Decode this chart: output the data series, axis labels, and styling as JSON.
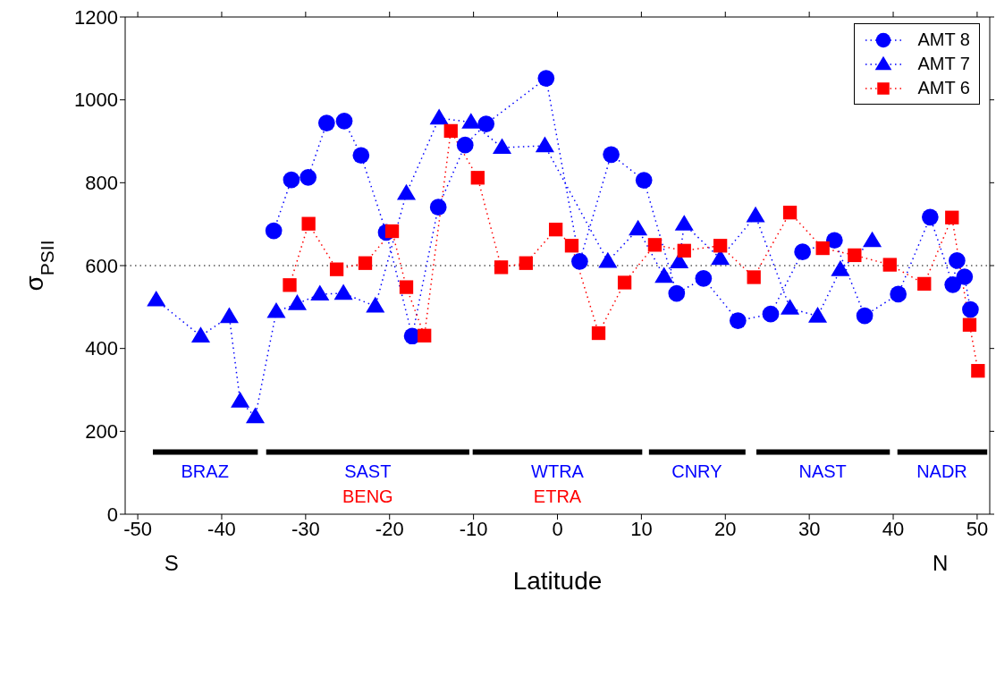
{
  "chart_data": {
    "type": "line",
    "xlabel": "Latitude",
    "ylabel": "σ$_{PSII}$",
    "xlim": [
      -51.5,
      51.5
    ],
    "xticks": [
      -50,
      -40,
      -30,
      -20,
      -10,
      0,
      10,
      20,
      30,
      40,
      50
    ],
    "ylim": [
      0,
      1200
    ],
    "yticks": [
      0,
      200,
      400,
      600,
      800,
      1000,
      1200
    ],
    "legend": "top right",
    "line_style": "dotted",
    "series": [
      {
        "name": "AMT 8",
        "color": "#0000ff",
        "marker": "circle",
        "x": [
          -33.8,
          -31.7,
          -29.7,
          -27.5,
          -25.4,
          -23.4,
          -20.4,
          -17.3,
          -14.2,
          -11.0,
          -8.5,
          -1.35,
          2.65,
          6.4,
          10.3,
          14.2,
          17.4,
          21.5,
          25.4,
          29.2,
          33.0,
          36.6,
          40.6,
          44.4,
          47.1,
          47.6,
          48.5,
          49.2
        ],
        "values": [
          684,
          807,
          813,
          944,
          949,
          866,
          680,
          430,
          741,
          891,
          942,
          1052,
          610,
          868,
          806,
          533,
          569,
          467,
          483,
          633,
          661,
          479,
          531,
          717,
          554,
          612,
          573,
          494
        ]
      },
      {
        "name": "AMT 7",
        "color": "#0000ff",
        "marker": "triangle",
        "x": [
          -47.8,
          -42.5,
          -39.1,
          -37.8,
          -36.0,
          -33.5,
          -31.0,
          -28.3,
          -25.5,
          -21.7,
          -18.0,
          -14.1,
          -10.3,
          -6.6,
          -1.5,
          6.0,
          9.6,
          12.7,
          14.5,
          15.1,
          19.4,
          23.6,
          27.7,
          31.0,
          33.7,
          37.5
        ],
        "values": [
          517,
          430,
          477,
          273,
          235,
          489,
          508,
          531,
          533,
          502,
          774,
          956,
          946,
          885,
          889,
          610,
          688,
          574,
          609,
          700,
          617,
          720,
          497,
          478,
          590,
          660
        ]
      },
      {
        "name": "AMT 6",
        "color": "#ff0000",
        "marker": "square",
        "x": [
          -31.9,
          -29.65,
          -26.3,
          -22.9,
          -19.7,
          -18.0,
          -15.85,
          -12.7,
          -9.5,
          -6.7,
          -3.75,
          -0.2,
          1.7,
          4.9,
          8.0,
          11.6,
          15.1,
          19.4,
          23.4,
          27.7,
          31.6,
          35.4,
          39.6,
          43.7,
          47.0,
          49.1,
          50.1
        ],
        "values": [
          553,
          701,
          591,
          606,
          683,
          548,
          431,
          925,
          812,
          596,
          606,
          687,
          648,
          437,
          559,
          650,
          636,
          648,
          572,
          728,
          642,
          625,
          602,
          556,
          716,
          457,
          346
        ]
      },
      {
        "color": "#000000",
        "marker": "none",
        "line_style": "solid",
        "x": [
          -48.2,
          -35.7
        ],
        "values": [
          150,
          150
        ]
      },
      {
        "color": "#000000",
        "marker": "none",
        "line_style": "solid",
        "x": [
          -34.7,
          -10.5
        ],
        "values": [
          150,
          150
        ]
      },
      {
        "color": "#000000",
        "marker": "none",
        "line_style": "solid",
        "x": [
          -10.1,
          10.1
        ],
        "values": [
          150,
          150
        ]
      },
      {
        "color": "#000000",
        "marker": "none",
        "line_style": "solid",
        "x": [
          10.9,
          22.4
        ],
        "values": [
          150,
          150
        ]
      },
      {
        "color": "#000000",
        "marker": "none",
        "line_style": "solid",
        "x": [
          23.7,
          39.6
        ],
        "values": [
          150,
          150
        ]
      },
      {
        "color": "#000000",
        "marker": "none",
        "line_style": "solid",
        "x": [
          40.5,
          51.2
        ],
        "values": [
          150,
          150
        ]
      }
    ],
    "ref_lines": [
      {
        "axis": "y",
        "value": 600,
        "line_style": "dotted",
        "color": "#000000"
      }
    ],
    "annotations": [
      {
        "text": "BRAZ",
        "x": -42,
        "y": 150
      },
      {
        "text": "SAST",
        "x": -22.6,
        "y": 150
      },
      {
        "text": "BENG",
        "x": -22.6,
        "y": 150
      },
      {
        "text": "WTRA",
        "x": 0,
        "y": 150
      },
      {
        "text": "ETRA",
        "x": 0,
        "y": 150
      },
      {
        "text": "CNRY",
        "x": 16.6,
        "y": 150
      },
      {
        "text": "NAST",
        "x": 31.6,
        "y": 150
      },
      {
        "text": "NADR",
        "x": 45.8,
        "y": 150
      },
      "S",
      "N"
    ]
  }
}
